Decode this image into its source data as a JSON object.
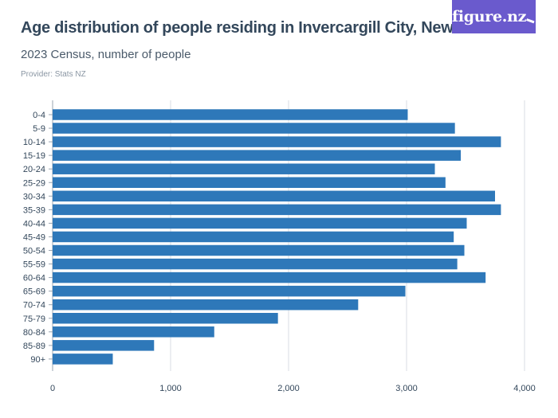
{
  "header": {
    "title": "Age distribution of people residing in Invercargill City, New Zealand",
    "subtitle": "2023 Census, number of people",
    "provider": "Provider: Stats NZ",
    "logo": "figure.nz"
  },
  "colors": {
    "bar": "#2e78b9",
    "grid": "#d9dee3",
    "logo_bg": "#6a5acd",
    "text": "#33475b"
  },
  "chart_data": {
    "type": "bar",
    "orientation": "horizontal",
    "title": "Age distribution of people residing in Invercargill City, New Zealand",
    "subtitle": "2023 Census, number of people",
    "xlabel": "",
    "ylabel": "",
    "xlim": [
      0,
      4000
    ],
    "xticks": [
      0,
      1000,
      2000,
      3000,
      4000
    ],
    "xtick_labels": [
      "0",
      "1,000",
      "2,000",
      "3,000",
      "4,000"
    ],
    "grid": true,
    "categories": [
      "0-4",
      "5-9",
      "10-14",
      "15-19",
      "20-24",
      "25-29",
      "30-34",
      "35-39",
      "40-44",
      "45-49",
      "50-54",
      "55-59",
      "60-64",
      "65-69",
      "70-74",
      "75-79",
      "80-84",
      "85-89",
      "90+"
    ],
    "values": [
      3010,
      3410,
      3800,
      3460,
      3240,
      3330,
      3750,
      3800,
      3510,
      3400,
      3490,
      3430,
      3670,
      2990,
      2590,
      1910,
      1370,
      860,
      510
    ]
  }
}
